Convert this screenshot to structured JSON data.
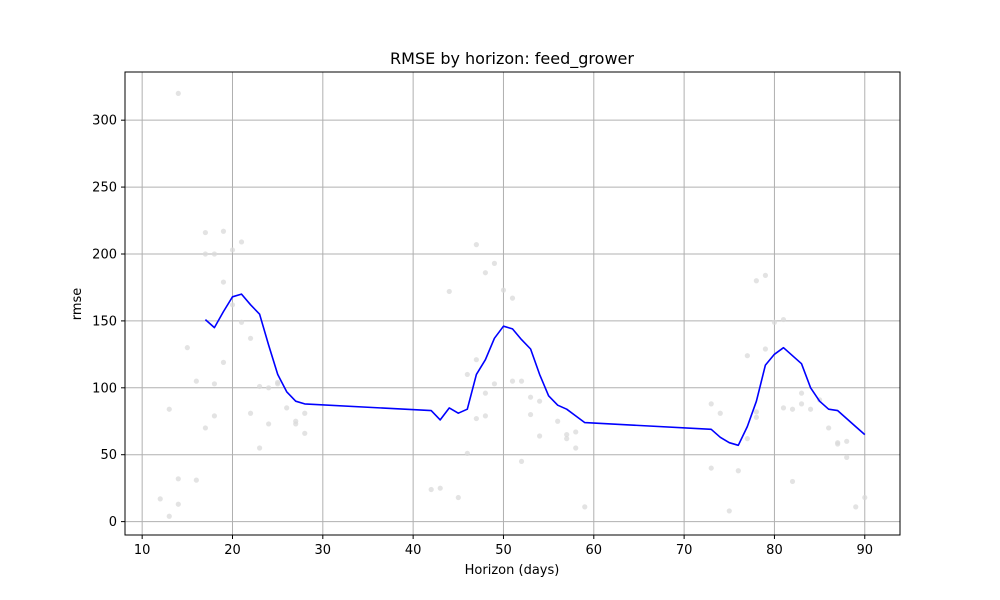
{
  "chart_data": {
    "type": "line",
    "title": "RMSE by horizon: feed_grower",
    "xlabel": "Horizon (days)",
    "ylabel": "rmse",
    "xlim": [
      8.1,
      93.9
    ],
    "ylim": [
      -10,
      336
    ],
    "xticks": [
      10,
      20,
      30,
      40,
      50,
      60,
      70,
      80,
      90
    ],
    "yticks": [
      0,
      50,
      100,
      150,
      200,
      250,
      300
    ],
    "grid": true,
    "colors": {
      "line": "#0000ff",
      "points": "#d9d9d9",
      "grid": "#b0b0b0"
    },
    "series": [
      {
        "type": "line",
        "x": [
          17,
          18,
          19,
          20,
          21,
          22,
          23,
          24,
          25,
          26,
          27,
          28,
          42,
          43,
          44,
          45,
          46,
          47,
          48,
          49,
          50,
          51,
          52,
          53,
          54,
          55,
          56,
          57,
          58,
          59,
          73,
          74,
          75,
          76,
          77,
          78,
          79,
          80,
          81,
          82,
          83,
          84,
          85,
          86,
          87,
          88,
          89,
          90
        ],
        "y": [
          151,
          145,
          157,
          168,
          170,
          162,
          155,
          132,
          110,
          97,
          90,
          88,
          83,
          76,
          85,
          81,
          84,
          110,
          121,
          137,
          146,
          144,
          136,
          129,
          110,
          94,
          87,
          84,
          79,
          74,
          69,
          63,
          59,
          57,
          71,
          90,
          117,
          125,
          130,
          124,
          118,
          100,
          90,
          84,
          83,
          77,
          71,
          65
        ]
      },
      {
        "type": "scatter",
        "x": [
          12,
          13,
          13,
          14,
          14,
          14,
          15,
          16,
          16,
          17,
          17,
          17,
          18,
          18,
          18,
          19,
          19,
          19,
          20,
          20,
          21,
          21,
          22,
          22,
          23,
          23,
          24,
          24,
          25,
          25,
          26,
          27,
          27,
          28,
          28,
          42,
          43,
          44,
          45,
          46,
          46,
          47,
          47,
          47,
          48,
          48,
          48,
          49,
          49,
          50,
          51,
          51,
          52,
          52,
          53,
          53,
          54,
          54,
          56,
          57,
          57,
          58,
          58,
          59,
          73,
          73,
          74,
          75,
          76,
          77,
          77,
          78,
          78,
          78,
          79,
          79,
          80,
          81,
          81,
          82,
          82,
          83,
          83,
          84,
          85,
          86,
          87,
          87,
          88,
          88,
          89,
          90
        ],
        "y": [
          17,
          4,
          84,
          320,
          32,
          13,
          130,
          105,
          31,
          216,
          200,
          70,
          200,
          103,
          79,
          217,
          179,
          119,
          203,
          162,
          209,
          149,
          137,
          81,
          101,
          55,
          100,
          73,
          104,
          103,
          85,
          75,
          73,
          81,
          66,
          24,
          25,
          172,
          18,
          110,
          51,
          121,
          207,
          77,
          186,
          96,
          79,
          193,
          103,
          173,
          167,
          105,
          105,
          45,
          93,
          80,
          90,
          64,
          75,
          65,
          62,
          67,
          55,
          11,
          88,
          40,
          81,
          8,
          38,
          124,
          62,
          180,
          82,
          78,
          184,
          129,
          149,
          151,
          85,
          84,
          30,
          96,
          88,
          84,
          91,
          70,
          59,
          58,
          48,
          60,
          11,
          18
        ]
      }
    ]
  }
}
